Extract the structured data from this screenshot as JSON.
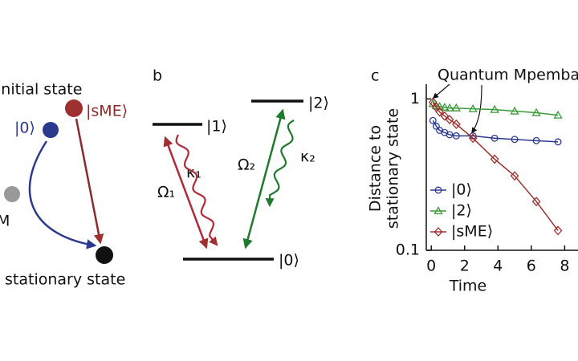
{
  "panel_a": {
    "initial": "initial state",
    "ket0": "|0⟩",
    "ketsme": "|sME⟩",
    "m": "M",
    "stationary": "stationary state"
  },
  "panel_b": {
    "label": "b",
    "level1": "|1⟩",
    "level2": "|2⟩",
    "level0": "|0⟩",
    "omega1": "Ω₁",
    "kappa1": "κ₁",
    "omega2": "Ω₂",
    "kappa2": "κ₂"
  },
  "chart_data": {
    "type": "scatter",
    "panel_label": "c",
    "annotation": "Quantum Mpemba",
    "xlabel": "Time",
    "ylabel": [
      "Distance to",
      "stationary state"
    ],
    "x": [
      0.1,
      0.3,
      0.5,
      0.8,
      1.1,
      1.5,
      2.5,
      3.8,
      5.0,
      6.3,
      7.6
    ],
    "series": [
      {
        "name": "|0⟩",
        "color": "#2b3a8f",
        "marker": "circle",
        "values": [
          0.72,
          0.66,
          0.62,
          0.6,
          0.58,
          0.57,
          0.57,
          0.55,
          0.54,
          0.53,
          0.52
        ]
      },
      {
        "name": "|2⟩",
        "color": "#3a9a3a",
        "marker": "triangle",
        "values": [
          0.93,
          0.9,
          0.89,
          0.88,
          0.87,
          0.87,
          0.86,
          0.85,
          0.83,
          0.81,
          0.78
        ]
      },
      {
        "name": "|sME⟩",
        "color": "#9e3030",
        "marker": "diamond",
        "values": [
          0.95,
          0.88,
          0.82,
          0.77,
          0.73,
          0.68,
          0.55,
          0.4,
          0.31,
          0.21,
          0.135
        ]
      }
    ],
    "xlim": [
      -0.3,
      8.8
    ],
    "ylim": [
      0.1,
      1.25
    ],
    "xticks": [
      0,
      2,
      4,
      6,
      8
    ],
    "yticks": [
      0.1,
      1
    ],
    "ylog": true,
    "legend": "lower left"
  }
}
